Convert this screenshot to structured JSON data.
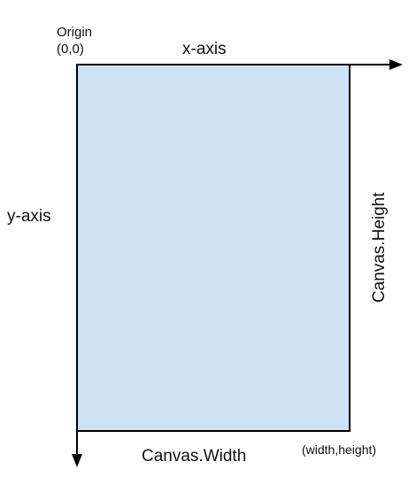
{
  "labels": {
    "origin_word": "Origin",
    "origin_coord": "(0,0)",
    "x_axis": "x-axis",
    "y_axis": "y-axis",
    "canvas_width": "Canvas.Width",
    "canvas_height": "Canvas.Height",
    "corner_coord": "(width,height)"
  },
  "colors": {
    "canvas_fill": "#cfe2f3",
    "stroke": "#000000"
  }
}
